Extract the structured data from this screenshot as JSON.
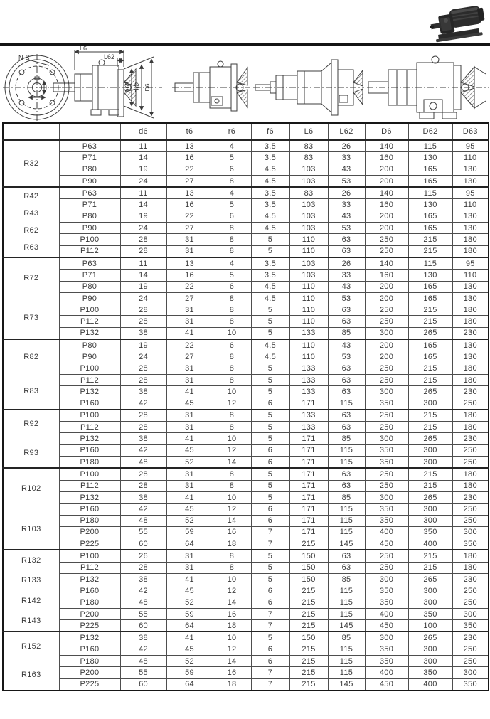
{
  "photo": {
    "name": "gear-motor-photo"
  },
  "drawings": {
    "flange_callout": "N-S",
    "dims": [
      "L6",
      "L62",
      "D63",
      "D62",
      "D6"
    ]
  },
  "table": {
    "columns": [
      "",
      "",
      "d6",
      "t6",
      "r6",
      "f6",
      "L6",
      "L62",
      "D6",
      "D62",
      "D63"
    ],
    "groups": [
      {
        "labels": [
          "R32"
        ],
        "rows": [
          {
            "p": "P63",
            "values": [
              "11",
              "13",
              "4",
              "3.5",
              "83",
              "26",
              "140",
              "115",
              "95"
            ]
          },
          {
            "p": "P71",
            "values": [
              "14",
              "16",
              "5",
              "3.5",
              "83",
              "33",
              "160",
              "130",
              "110"
            ]
          },
          {
            "p": "P80",
            "values": [
              "19",
              "22",
              "6",
              "4.5",
              "103",
              "43",
              "200",
              "165",
              "130"
            ]
          },
          {
            "p": "P90",
            "values": [
              "24",
              "27",
              "8",
              "4.5",
              "103",
              "53",
              "200",
              "165",
              "130"
            ]
          }
        ]
      },
      {
        "labels": [
          "R42",
          "R43",
          "R62",
          "R63"
        ],
        "rows": [
          {
            "p": "P63",
            "values": [
              "11",
              "13",
              "4",
              "3.5",
              "83",
              "26",
              "140",
              "115",
              "95"
            ]
          },
          {
            "p": "P71",
            "values": [
              "14",
              "16",
              "5",
              "3.5",
              "103",
              "33",
              "160",
              "130",
              "110"
            ]
          },
          {
            "p": "P80",
            "values": [
              "19",
              "22",
              "6",
              "4.5",
              "103",
              "43",
              "200",
              "165",
              "130"
            ]
          },
          {
            "p": "P90",
            "values": [
              "24",
              "27",
              "8",
              "4.5",
              "103",
              "53",
              "200",
              "165",
              "130"
            ]
          },
          {
            "p": "P100",
            "values": [
              "28",
              "31",
              "8",
              "5",
              "110",
              "63",
              "250",
              "215",
              "180"
            ]
          },
          {
            "p": "P112",
            "values": [
              "28",
              "31",
              "8",
              "5",
              "110",
              "63",
              "250",
              "215",
              "180"
            ]
          }
        ]
      },
      {
        "labels": [
          "R72",
          "R73"
        ],
        "rows": [
          {
            "p": "P63",
            "values": [
              "11",
              "13",
              "4",
              "3.5",
              "103",
              "26",
              "140",
              "115",
              "95"
            ]
          },
          {
            "p": "P71",
            "values": [
              "14",
              "16",
              "5",
              "3.5",
              "103",
              "33",
              "160",
              "130",
              "110"
            ]
          },
          {
            "p": "P80",
            "values": [
              "19",
              "22",
              "6",
              "4.5",
              "110",
              "43",
              "200",
              "165",
              "130"
            ]
          },
          {
            "p": "P90",
            "values": [
              "24",
              "27",
              "8",
              "4.5",
              "110",
              "53",
              "200",
              "165",
              "130"
            ]
          },
          {
            "p": "P100",
            "values": [
              "28",
              "31",
              "8",
              "5",
              "110",
              "63",
              "250",
              "215",
              "180"
            ]
          },
          {
            "p": "P112",
            "values": [
              "28",
              "31",
              "8",
              "5",
              "110",
              "63",
              "250",
              "215",
              "180"
            ]
          },
          {
            "p": "P132",
            "values": [
              "38",
              "41",
              "10",
              "5",
              "133",
              "85",
              "300",
              "265",
              "230"
            ]
          }
        ]
      },
      {
        "labels": [
          "R82",
          "R83"
        ],
        "rows": [
          {
            "p": "P80",
            "values": [
              "19",
              "22",
              "6",
              "4.5",
              "110",
              "43",
              "200",
              "165",
              "130"
            ]
          },
          {
            "p": "P90",
            "values": [
              "24",
              "27",
              "8",
              "4.5",
              "110",
              "53",
              "200",
              "165",
              "130"
            ]
          },
          {
            "p": "P100",
            "values": [
              "28",
              "31",
              "8",
              "5",
              "133",
              "63",
              "250",
              "215",
              "180"
            ]
          },
          {
            "p": "P112",
            "values": [
              "28",
              "31",
              "8",
              "5",
              "133",
              "63",
              "250",
              "215",
              "180"
            ]
          },
          {
            "p": "P132",
            "values": [
              "38",
              "41",
              "10",
              "5",
              "133",
              "63",
              "300",
              "265",
              "230"
            ]
          },
          {
            "p": "P160",
            "values": [
              "42",
              "45",
              "12",
              "6",
              "171",
              "115",
              "350",
              "300",
              "250"
            ]
          }
        ]
      },
      {
        "labels": [
          "R92",
          "R93"
        ],
        "rows": [
          {
            "p": "P100",
            "values": [
              "28",
              "31",
              "8",
              "5",
              "133",
              "63",
              "250",
              "215",
              "180"
            ]
          },
          {
            "p": "P112",
            "values": [
              "28",
              "31",
              "8",
              "5",
              "133",
              "63",
              "250",
              "215",
              "180"
            ]
          },
          {
            "p": "P132",
            "values": [
              "38",
              "41",
              "10",
              "5",
              "171",
              "85",
              "300",
              "265",
              "230"
            ]
          },
          {
            "p": "P160",
            "values": [
              "42",
              "45",
              "12",
              "6",
              "171",
              "115",
              "350",
              "300",
              "250"
            ]
          },
          {
            "p": "P180",
            "values": [
              "48",
              "52",
              "14",
              "6",
              "171",
              "115",
              "350",
              "300",
              "250"
            ]
          }
        ]
      },
      {
        "labels": [
          "R102",
          "R103"
        ],
        "rows": [
          {
            "p": "P100",
            "values": [
              "28",
              "31",
              "8",
              "5",
              "171",
              "63",
              "250",
              "215",
              "180"
            ]
          },
          {
            "p": "P112",
            "values": [
              "28",
              "31",
              "8",
              "5",
              "171",
              "63",
              "250",
              "215",
              "180"
            ]
          },
          {
            "p": "P132",
            "values": [
              "38",
              "41",
              "10",
              "5",
              "171",
              "85",
              "300",
              "265",
              "230"
            ]
          },
          {
            "p": "P160",
            "values": [
              "42",
              "45",
              "12",
              "6",
              "171",
              "115",
              "350",
              "300",
              "250"
            ]
          },
          {
            "p": "P180",
            "values": [
              "48",
              "52",
              "14",
              "6",
              "171",
              "115",
              "350",
              "300",
              "250"
            ]
          },
          {
            "p": "P200",
            "values": [
              "55",
              "59",
              "16",
              "7",
              "171",
              "115",
              "400",
              "350",
              "300"
            ]
          },
          {
            "p": "P225",
            "values": [
              "60",
              "64",
              "18",
              "7",
              "215",
              "145",
              "450",
              "400",
              "350"
            ]
          }
        ]
      },
      {
        "labels": [
          "R132",
          "R133",
          "R142",
          "R143"
        ],
        "rows": [
          {
            "p": "P100",
            "values": [
              "26",
              "31",
              "8",
              "5",
              "150",
              "63",
              "250",
              "215",
              "180"
            ]
          },
          {
            "p": "P112",
            "values": [
              "28",
              "31",
              "8",
              "5",
              "150",
              "63",
              "250",
              "215",
              "180"
            ]
          },
          {
            "p": "P132",
            "values": [
              "38",
              "41",
              "10",
              "5",
              "150",
              "85",
              "300",
              "265",
              "230"
            ]
          },
          {
            "p": "P160",
            "values": [
              "42",
              "45",
              "12",
              "6",
              "215",
              "115",
              "350",
              "300",
              "250"
            ]
          },
          {
            "p": "P180",
            "values": [
              "48",
              "52",
              "14",
              "6",
              "215",
              "115",
              "350",
              "300",
              "250"
            ]
          },
          {
            "p": "P200",
            "values": [
              "55",
              "59",
              "16",
              "7",
              "215",
              "115",
              "400",
              "350",
              "300"
            ]
          },
          {
            "p": "P225",
            "values": [
              "60",
              "64",
              "18",
              "7",
              "215",
              "145",
              "450",
              "100",
              "350"
            ]
          }
        ]
      },
      {
        "labels": [
          "R152",
          "R163"
        ],
        "rows": [
          {
            "p": "P132",
            "values": [
              "38",
              "41",
              "10",
              "5",
              "150",
              "85",
              "300",
              "265",
              "230"
            ]
          },
          {
            "p": "P160",
            "values": [
              "42",
              "45",
              "12",
              "6",
              "215",
              "115",
              "350",
              "300",
              "250"
            ]
          },
          {
            "p": "P180",
            "values": [
              "48",
              "52",
              "14",
              "6",
              "215",
              "115",
              "350",
              "300",
              "250"
            ]
          },
          {
            "p": "P200",
            "values": [
              "55",
              "59",
              "16",
              "7",
              "215",
              "115",
              "400",
              "350",
              "300"
            ]
          },
          {
            "p": "P225",
            "values": [
              "60",
              "64",
              "18",
              "7",
              "215",
              "145",
              "450",
              "400",
              "350"
            ]
          }
        ]
      }
    ]
  }
}
